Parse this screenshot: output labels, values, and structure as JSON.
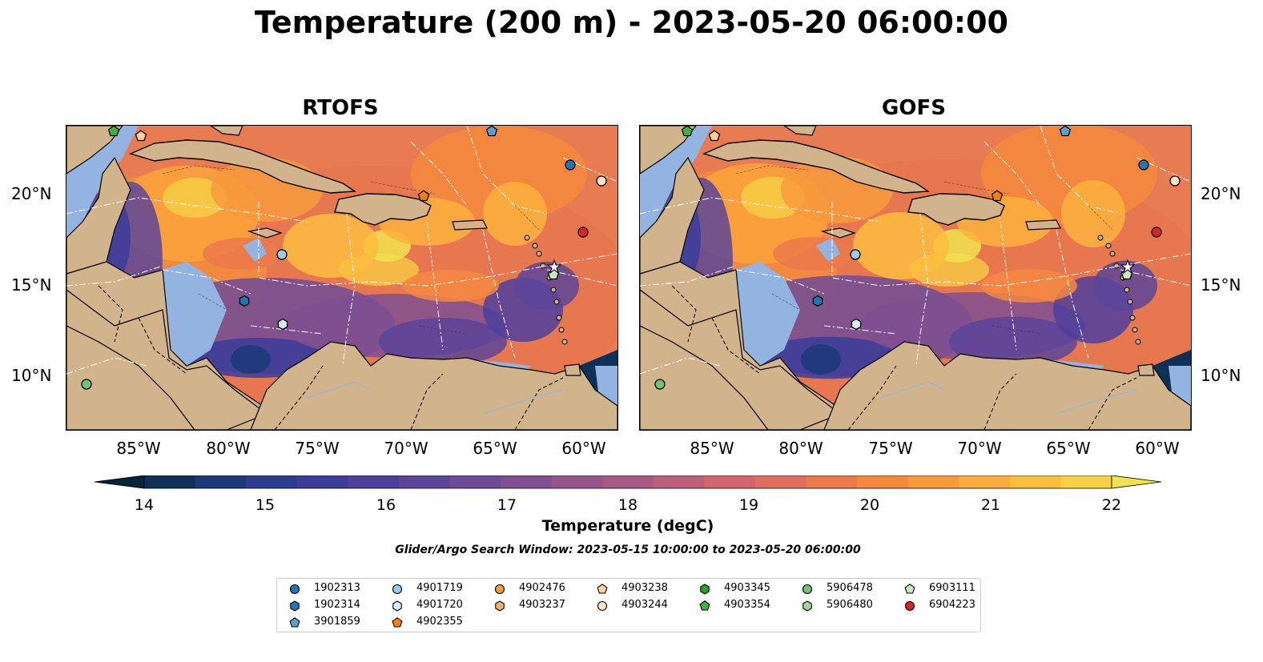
{
  "figure": {
    "title": "Temperature (200 m) - 2023-05-20 06:00:00",
    "search_window": "Glider/Argo Search Window: 2023-05-15 10:00:00 to 2023-05-20 06:00:00"
  },
  "panels": [
    {
      "title": "RTOFS"
    },
    {
      "title": "GOFS"
    }
  ],
  "axes": {
    "x_ticks": [
      "85°W",
      "80°W",
      "75°W",
      "70°W",
      "65°W",
      "60°W"
    ],
    "y_ticks": [
      "20°N",
      "15°N",
      "10°N"
    ]
  },
  "colorbar": {
    "label": "Temperature (degC)",
    "ticks": [
      "14",
      "15",
      "16",
      "17",
      "18",
      "19",
      "20",
      "21",
      "22"
    ],
    "colors": [
      "#06233a",
      "#0e3158",
      "#1a3a78",
      "#2c3d90",
      "#3c3c9a",
      "#4d3f9c",
      "#5c4599",
      "#6e4b96",
      "#804f91",
      "#93558b",
      "#a75a84",
      "#bd607b",
      "#d2656e",
      "#e06e5c",
      "#eb794b",
      "#f4883f",
      "#f89a3c",
      "#fcab3d",
      "#fdbd3f",
      "#f9d145",
      "#f0e34d"
    ]
  },
  "legend": {
    "items": [
      {
        "id": "1902313",
        "color": "#1f77b4",
        "shape": "circle"
      },
      {
        "id": "1902314",
        "color": "#1f77b4",
        "shape": "hexagon"
      },
      {
        "id": "3901859",
        "color": "#5aa0d8",
        "shape": "pentagon"
      },
      {
        "id": "4901719",
        "color": "#9ecae9",
        "shape": "circle"
      },
      {
        "id": "4901720",
        "color": "#d6ebf7",
        "shape": "hexagon"
      },
      {
        "id": "4902355",
        "color": "#fd7f0e",
        "shape": "pentagon"
      },
      {
        "id": "4902476",
        "color": "#fd9a3c",
        "shape": "circle"
      },
      {
        "id": "4903237",
        "color": "#fdb06a",
        "shape": "hexagon"
      },
      {
        "id": "4903238",
        "color": "#fdd09b",
        "shape": "pentagon"
      },
      {
        "id": "4903244",
        "color": "#fee3c8",
        "shape": "circle"
      },
      {
        "id": "4903345",
        "color": "#2ca02c",
        "shape": "hexagon"
      },
      {
        "id": "4903354",
        "color": "#3fb43f",
        "shape": "pentagon"
      },
      {
        "id": "5906478",
        "color": "#74c476",
        "shape": "circle"
      },
      {
        "id": "5906480",
        "color": "#a1d99b",
        "shape": "hexagon"
      },
      {
        "id": "6903111",
        "color": "#c7e9c0",
        "shape": "pentagon"
      },
      {
        "id": "6904223",
        "color": "#d62728",
        "shape": "circle"
      }
    ]
  },
  "map_colors": {
    "land": "#d2b48c",
    "shelf": "#93b4e0",
    "deep_dark": "#06233a"
  }
}
